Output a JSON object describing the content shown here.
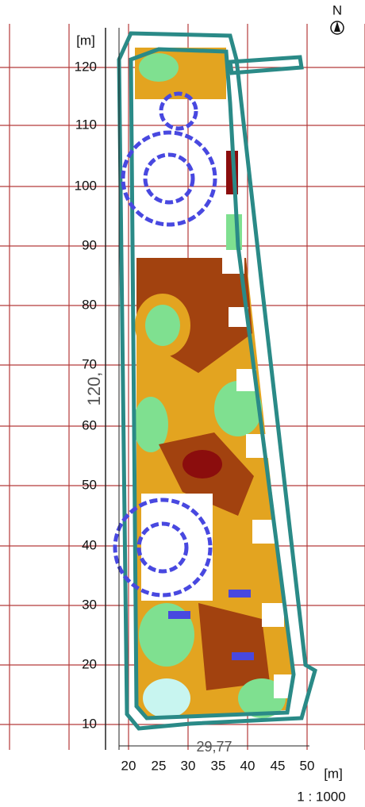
{
  "north": "N",
  "y_axis": {
    "unit": "[m]",
    "labels": [
      "120",
      "110",
      "100",
      "90",
      "80",
      "70",
      "60",
      "50",
      "40",
      "30",
      "20",
      "10"
    ]
  },
  "x_axis": {
    "unit": "[m]",
    "labels": [
      "20",
      "25",
      "30",
      "35",
      "40",
      "45",
      "50"
    ]
  },
  "dimensions": {
    "height": "120,",
    "width": "29,77"
  },
  "scale": "1 : 1000"
}
